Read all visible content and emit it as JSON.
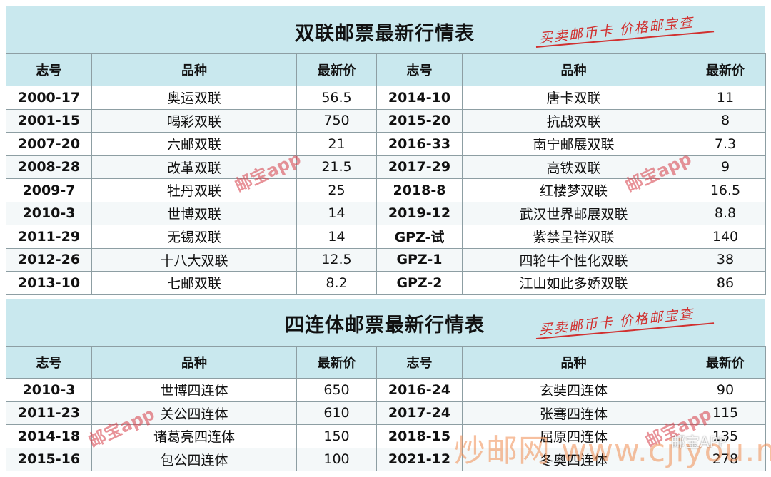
{
  "table1": {
    "title": "双联邮票最新行情表",
    "slogan": "买卖邮币卡 价格邮宝查",
    "headers": [
      "志号",
      "品种",
      "最新价",
      "志号",
      "品种",
      "最新价"
    ],
    "rows": [
      [
        "2000-17",
        "奥运双联",
        "56.5",
        "2014-10",
        "唐卡双联",
        "11"
      ],
      [
        "2001-15",
        "喝彩双联",
        "750",
        "2015-20",
        "抗战双联",
        "8"
      ],
      [
        "2007-20",
        "六邮双联",
        "21",
        "2016-33",
        "南宁邮展双联",
        "7.3"
      ],
      [
        "2008-28",
        "改革双联",
        "21.5",
        "2017-29",
        "高铁双联",
        "9"
      ],
      [
        "2009-7",
        "牡丹双联",
        "25",
        "2018-8",
        "红楼梦双联",
        "16.5"
      ],
      [
        "2010-3",
        "世博双联",
        "14",
        "2019-12",
        "武汉世界邮展双联",
        "8.8"
      ],
      [
        "2011-29",
        "无锡双联",
        "14",
        "GPZ-试",
        "紫禁呈祥双联",
        "140"
      ],
      [
        "2012-26",
        "十八大双联",
        "12.5",
        "GPZ-1",
        "四轮牛个性化双联",
        "38"
      ],
      [
        "2013-10",
        "七邮双联",
        "8.2",
        "GPZ-2",
        "江山如此多娇双联",
        "86"
      ]
    ]
  },
  "table2": {
    "title": "四连体邮票最新行情表",
    "slogan": "买卖邮币卡 价格邮宝查",
    "headers": [
      "志号",
      "品种",
      "最新价",
      "志号",
      "品种",
      "最新价"
    ],
    "rows": [
      [
        "2010-3",
        "世博四连体",
        "650",
        "2016-24",
        "玄奘四连体",
        "90"
      ],
      [
        "2011-23",
        "关公四连体",
        "610",
        "2017-24",
        "张骞四连体",
        "115"
      ],
      [
        "2014-18",
        "诸葛亮四连体",
        "150",
        "2018-15",
        "屈原四连体",
        "135"
      ],
      [
        "2015-16",
        "包公四连体",
        "100",
        "2021-12",
        "冬奥四连体",
        "278"
      ]
    ]
  },
  "watermarks": {
    "youbao": "邮宝app",
    "site": "炒邮网 www.cjiyou.net",
    "badge": "邮宝APP"
  }
}
